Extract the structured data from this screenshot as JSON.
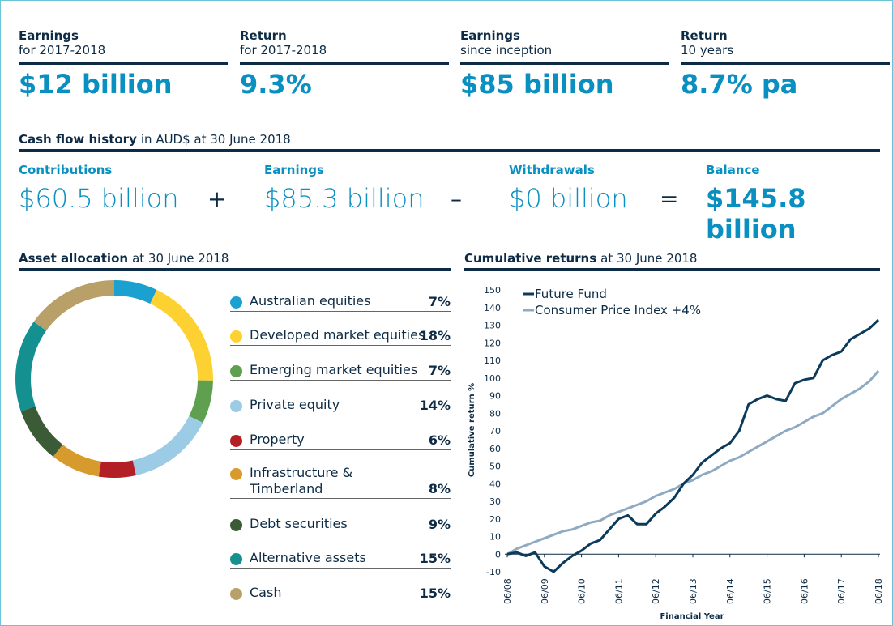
{
  "kpis": [
    {
      "label": "Earnings",
      "sub": "for 2017-2018",
      "value": "$12 billion"
    },
    {
      "label": "Return",
      "sub": "for 2017-2018",
      "value": "9.3%"
    },
    {
      "label": "Earnings",
      "sub": "since inception",
      "value": "$85 billion"
    },
    {
      "label": "Return",
      "sub": "10 years",
      "value": "8.7% pa"
    }
  ],
  "cash_flow": {
    "title_bold": "Cash flow history",
    "title_rest": "in AUD$ at 30 June 2018",
    "items": [
      {
        "label": "Contributions",
        "value": "$60.5 billion"
      },
      {
        "label": "Earnings",
        "value": "$85.3 billion"
      },
      {
        "label": "Withdrawals",
        "value": "$0 billion"
      },
      {
        "label": "Balance",
        "value": "$145.8 billion"
      }
    ],
    "operators": [
      "+",
      "–",
      "="
    ]
  },
  "chart_data": [
    {
      "type": "donut",
      "title_bold": "Asset allocation",
      "title_rest": "at 30 June 2018",
      "categories": [
        "Australian equities",
        "Developed market equities",
        "Emerging market equities",
        "Private equity",
        "Property",
        "Infrastructure & Timberland",
        "Debt securities",
        "Alternative assets",
        "Cash"
      ],
      "values": [
        7,
        18,
        7,
        14,
        6,
        8,
        9,
        15,
        15
      ],
      "value_labels": [
        "7%",
        "18%",
        "7%",
        "14%",
        "6%",
        "8%",
        "9%",
        "15%",
        "15%"
      ],
      "colors": [
        "#1ba1d0",
        "#fdd132",
        "#5e9f50",
        "#9ccbe6",
        "#b22025",
        "#d69a2d",
        "#3b5a36",
        "#13908f",
        "#b8a068"
      ]
    },
    {
      "type": "line",
      "title_bold": "Cumulative returns",
      "title_rest": "at 30 June 2018",
      "x_label": "Financial Year",
      "y_label": "Cumulative return %",
      "x": [
        2008.5,
        2008.75,
        2009,
        2009.25,
        2009.5,
        2009.75,
        2010,
        2010.25,
        2010.5,
        2010.75,
        2011,
        2011.25,
        2011.5,
        2011.75,
        2012,
        2012.25,
        2012.5,
        2012.75,
        2013,
        2013.25,
        2013.5,
        2013.75,
        2014,
        2014.25,
        2014.5,
        2014.75,
        2015,
        2015.25,
        2015.5,
        2015.75,
        2016,
        2016.25,
        2016.5,
        2016.75,
        2017,
        2017.25,
        2017.5,
        2017.75,
        2018,
        2018.25,
        2018.5
      ],
      "series": [
        {
          "name": "Future Fund",
          "color": "#0b3a5b",
          "values": [
            0,
            1,
            -1,
            1,
            -7,
            -10,
            -5,
            -1,
            2,
            6,
            8,
            14,
            20,
            22,
            17,
            17,
            23,
            27,
            32,
            40,
            45,
            52,
            56,
            60,
            63,
            70,
            85,
            88,
            90,
            88,
            87,
            97,
            99,
            100,
            110,
            113,
            115,
            122,
            125,
            128,
            133
          ]
        },
        {
          "name": "Consumer Price Index +4%",
          "color": "#8eaac3",
          "values": [
            0,
            3,
            5,
            7,
            9,
            11,
            13,
            14,
            16,
            18,
            19,
            22,
            24,
            26,
            28,
            30,
            33,
            35,
            37,
            40,
            42,
            45,
            47,
            50,
            53,
            55,
            58,
            61,
            64,
            67,
            70,
            72,
            75,
            78,
            80,
            84,
            88,
            91,
            94,
            98,
            104
          ]
        }
      ],
      "xlim": [
        2008.5,
        2018.5
      ],
      "xticks": [
        {
          "value": 2008.5,
          "label": "06/08"
        },
        {
          "value": 2009.5,
          "label": "06/09"
        },
        {
          "value": 2010.5,
          "label": "06/10"
        },
        {
          "value": 2011.5,
          "label": "06/11"
        },
        {
          "value": 2012.5,
          "label": "06/12"
        },
        {
          "value": 2013.5,
          "label": "06/13"
        },
        {
          "value": 2014.5,
          "label": "06/14"
        },
        {
          "value": 2015.5,
          "label": "06/15"
        },
        {
          "value": 2016.5,
          "label": "06/16"
        },
        {
          "value": 2017.5,
          "label": "06/17"
        },
        {
          "value": 2018.5,
          "label": "06/18"
        }
      ],
      "ylim": [
        -10,
        150
      ],
      "yticks": [
        -10,
        0,
        10,
        20,
        30,
        40,
        50,
        60,
        70,
        80,
        90,
        100,
        110,
        120,
        130,
        140,
        150
      ]
    }
  ]
}
